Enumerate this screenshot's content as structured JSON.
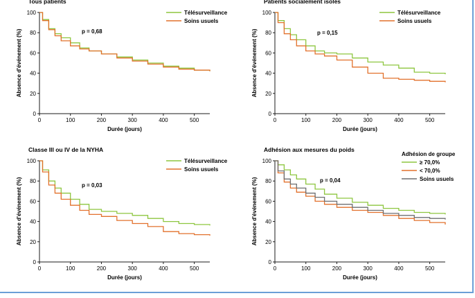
{
  "colors": {
    "telesurveillance": "#8dc63f",
    "usual_care": "#e2702b",
    "isolated_care": "#6d6e71",
    "frame": "#6a9fd6"
  },
  "chart_data": [
    {
      "type": "line",
      "title": "Tous patients",
      "xlabel": "Durée (jours)",
      "ylabel": "Absence d'événement (%)",
      "xlim": [
        0,
        550
      ],
      "ylim": [
        0,
        100
      ],
      "xticks": [
        0,
        100,
        200,
        300,
        400,
        500
      ],
      "yticks": [
        0,
        20,
        40,
        60,
        80,
        100
      ],
      "legend_title": "",
      "annotation": "p = 0,68",
      "series": [
        {
          "name": "Télésurveillance",
          "color": "#8dc63f",
          "x": [
            0,
            10,
            30,
            50,
            70,
            100,
            130,
            160,
            200,
            250,
            300,
            350,
            400,
            450,
            500,
            550
          ],
          "y": [
            100,
            93,
            84,
            79,
            75,
            70,
            65,
            62,
            59,
            56,
            53,
            50,
            47,
            45,
            43,
            42
          ]
        },
        {
          "name": "Soins usuels",
          "color": "#e2702b",
          "x": [
            0,
            10,
            30,
            50,
            70,
            100,
            130,
            160,
            200,
            250,
            300,
            350,
            400,
            450,
            500,
            550
          ],
          "y": [
            100,
            92,
            83,
            77,
            72,
            67,
            64,
            62,
            59,
            55,
            52,
            49,
            46,
            44,
            43,
            42
          ]
        }
      ]
    },
    {
      "type": "line",
      "title": "Patients socialement isolés",
      "xlabel": "Durée (jours)",
      "ylabel": "Absence d'événement (%)",
      "xlim": [
        0,
        550
      ],
      "ylim": [
        0,
        100
      ],
      "xticks": [
        0,
        100,
        200,
        300,
        400,
        500
      ],
      "yticks": [
        0,
        20,
        40,
        60,
        80,
        100
      ],
      "legend_title": "",
      "annotation": "p = 0,15",
      "series": [
        {
          "name": "Télésurveillance",
          "color": "#8dc63f",
          "x": [
            0,
            10,
            30,
            50,
            70,
            100,
            130,
            160,
            200,
            250,
            300,
            350,
            400,
            450,
            500,
            550
          ],
          "y": [
            100,
            92,
            84,
            78,
            73,
            67,
            62,
            60,
            59,
            55,
            51,
            48,
            45,
            41,
            40,
            39
          ]
        },
        {
          "name": "Soins usuels",
          "color": "#e2702b",
          "x": [
            0,
            10,
            30,
            50,
            70,
            100,
            130,
            160,
            200,
            250,
            300,
            350,
            400,
            450,
            500,
            550
          ],
          "y": [
            100,
            90,
            79,
            73,
            67,
            62,
            59,
            57,
            53,
            46,
            40,
            35,
            34,
            33,
            32,
            31
          ]
        }
      ]
    },
    {
      "type": "line",
      "title": "Classe III ou IV de la NYHA",
      "xlabel": "Durée (jours)",
      "ylabel": "Absence d'événement (%)",
      "xlim": [
        0,
        550
      ],
      "ylim": [
        0,
        100
      ],
      "xticks": [
        0,
        100,
        200,
        300,
        400,
        500
      ],
      "yticks": [
        0,
        20,
        40,
        60,
        80,
        100
      ],
      "legend_title": "",
      "annotation": "p = 0,03",
      "series": [
        {
          "name": "Télésurveillance",
          "color": "#8dc63f",
          "x": [
            0,
            10,
            30,
            50,
            70,
            100,
            130,
            160,
            200,
            250,
            300,
            350,
            400,
            450,
            500,
            550
          ],
          "y": [
            100,
            91,
            80,
            73,
            68,
            62,
            57,
            52,
            50,
            48,
            46,
            43,
            40,
            38,
            37,
            36
          ]
        },
        {
          "name": "Soins usuels",
          "color": "#e2702b",
          "x": [
            0,
            10,
            30,
            50,
            70,
            100,
            130,
            160,
            200,
            250,
            300,
            350,
            400,
            450,
            500,
            550
          ],
          "y": [
            100,
            89,
            76,
            68,
            62,
            56,
            51,
            47,
            45,
            41,
            38,
            35,
            30,
            28,
            27,
            26
          ]
        }
      ]
    },
    {
      "type": "line",
      "title": "Adhésion aux mesures du poids",
      "xlabel": "Durée (jours)",
      "ylabel": "Absence d'événement (%)",
      "xlim": [
        0,
        550
      ],
      "ylim": [
        0,
        100
      ],
      "xticks": [
        0,
        100,
        200,
        300,
        400,
        500
      ],
      "yticks": [
        0,
        20,
        40,
        60,
        80,
        100
      ],
      "legend_title": "Adhésion de groupe",
      "annotation": "p = 0,04",
      "series": [
        {
          "name": "≥ 70,0%",
          "color": "#8dc63f",
          "x": [
            0,
            10,
            30,
            50,
            70,
            100,
            130,
            160,
            200,
            250,
            300,
            350,
            400,
            450,
            500,
            550
          ],
          "y": [
            100,
            96,
            91,
            86,
            82,
            77,
            72,
            67,
            63,
            59,
            56,
            53,
            51,
            49,
            48,
            47
          ]
        },
        {
          "name": "< 70,0%",
          "color": "#e2702b",
          "x": [
            0,
            10,
            30,
            50,
            70,
            100,
            130,
            160,
            200,
            250,
            300,
            350,
            400,
            450,
            500,
            550
          ],
          "y": [
            100,
            88,
            79,
            73,
            69,
            65,
            60,
            57,
            54,
            51,
            49,
            46,
            43,
            41,
            39,
            37
          ]
        },
        {
          "name": "Soins usuels",
          "color": "#6d6e71",
          "x": [
            0,
            10,
            30,
            50,
            70,
            100,
            130,
            160,
            200,
            250,
            300,
            350,
            400,
            450,
            500,
            550
          ],
          "y": [
            100,
            90,
            82,
            77,
            73,
            68,
            64,
            60,
            57,
            54,
            51,
            48,
            46,
            44,
            43,
            42
          ]
        }
      ]
    }
  ]
}
